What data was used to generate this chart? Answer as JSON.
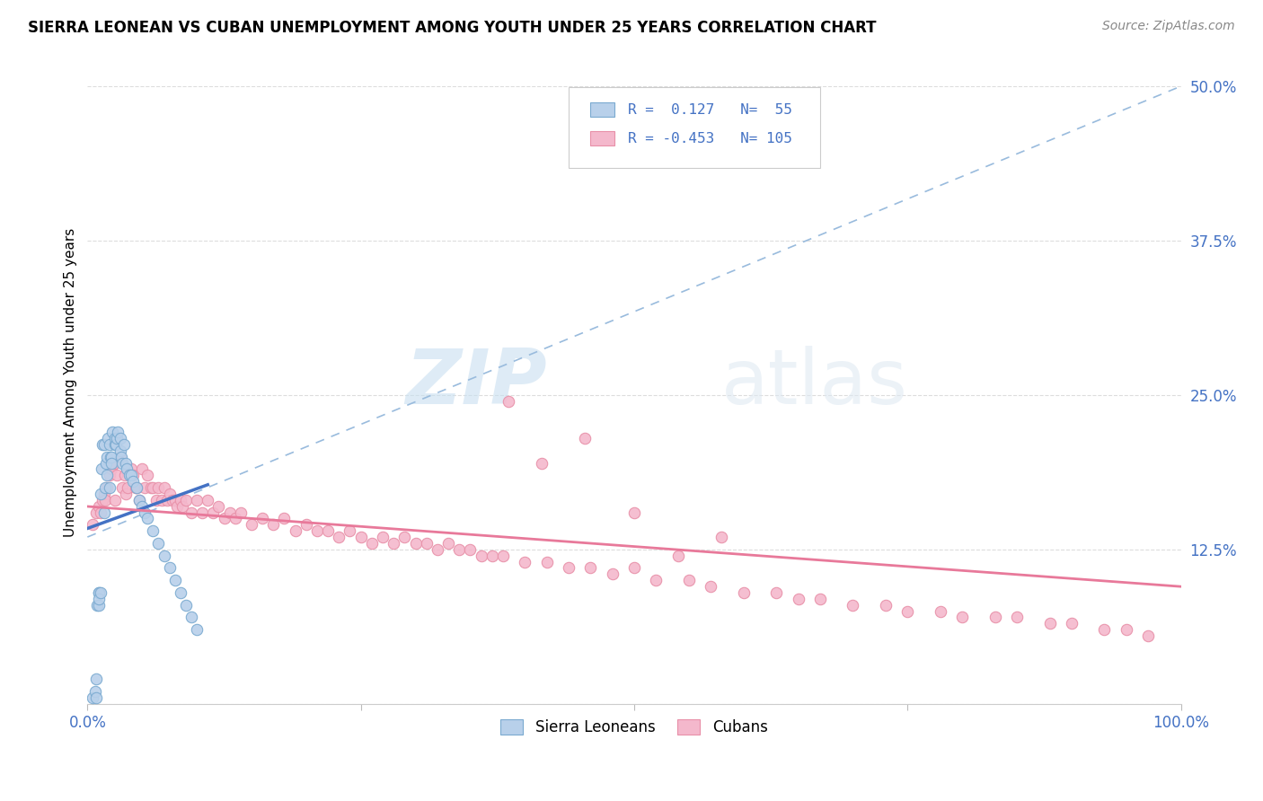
{
  "title": "SIERRA LEONEAN VS CUBAN UNEMPLOYMENT AMONG YOUTH UNDER 25 YEARS CORRELATION CHART",
  "source": "Source: ZipAtlas.com",
  "ylabel": "Unemployment Among Youth under 25 years",
  "yticks": [
    0.0,
    0.125,
    0.25,
    0.375,
    0.5
  ],
  "ytick_labels": [
    "",
    "12.5%",
    "25.0%",
    "37.5%",
    "50.0%"
  ],
  "xlim": [
    0.0,
    1.0
  ],
  "ylim": [
    0.0,
    0.52
  ],
  "legend_blue_label": "Sierra Leoneans",
  "legend_pink_label": "Cubans",
  "R_blue": 0.127,
  "N_blue": 55,
  "R_pink": -0.453,
  "N_pink": 105,
  "blue_line_color": "#4472c4",
  "pink_line_color": "#e8799a",
  "blue_scatter_fill": "#b8d0ea",
  "blue_scatter_edge": "#7aaad0",
  "pink_scatter_fill": "#f4b8cc",
  "pink_scatter_edge": "#e890a8",
  "watermark_zip": "ZIP",
  "watermark_atlas": "atlas",
  "blue_x": [
    0.005,
    0.007,
    0.008,
    0.008,
    0.009,
    0.01,
    0.01,
    0.01,
    0.01,
    0.012,
    0.012,
    0.013,
    0.014,
    0.015,
    0.015,
    0.016,
    0.017,
    0.018,
    0.018,
    0.019,
    0.02,
    0.02,
    0.021,
    0.022,
    0.022,
    0.023,
    0.025,
    0.025,
    0.026,
    0.027,
    0.028,
    0.03,
    0.03,
    0.031,
    0.032,
    0.033,
    0.035,
    0.036,
    0.038,
    0.04,
    0.042,
    0.045,
    0.047,
    0.05,
    0.052,
    0.055,
    0.06,
    0.065,
    0.07,
    0.075,
    0.08,
    0.085,
    0.09,
    0.095,
    0.1
  ],
  "blue_y": [
    0.005,
    0.01,
    0.02,
    0.005,
    0.08,
    0.08,
    0.09,
    0.09,
    0.085,
    0.09,
    0.17,
    0.19,
    0.21,
    0.155,
    0.21,
    0.175,
    0.195,
    0.2,
    0.185,
    0.215,
    0.175,
    0.21,
    0.2,
    0.2,
    0.195,
    0.22,
    0.21,
    0.215,
    0.21,
    0.215,
    0.22,
    0.205,
    0.215,
    0.2,
    0.195,
    0.21,
    0.195,
    0.19,
    0.185,
    0.185,
    0.18,
    0.175,
    0.165,
    0.16,
    0.155,
    0.15,
    0.14,
    0.13,
    0.12,
    0.11,
    0.1,
    0.09,
    0.08,
    0.07,
    0.06
  ],
  "pink_x": [
    0.005,
    0.008,
    0.01,
    0.012,
    0.014,
    0.015,
    0.016,
    0.018,
    0.02,
    0.022,
    0.024,
    0.025,
    0.027,
    0.03,
    0.032,
    0.034,
    0.035,
    0.037,
    0.04,
    0.042,
    0.044,
    0.045,
    0.047,
    0.05,
    0.052,
    0.055,
    0.058,
    0.06,
    0.063,
    0.065,
    0.068,
    0.07,
    0.073,
    0.075,
    0.078,
    0.08,
    0.082,
    0.085,
    0.087,
    0.09,
    0.095,
    0.1,
    0.105,
    0.11,
    0.115,
    0.12,
    0.125,
    0.13,
    0.135,
    0.14,
    0.15,
    0.16,
    0.17,
    0.18,
    0.19,
    0.2,
    0.21,
    0.22,
    0.23,
    0.24,
    0.25,
    0.26,
    0.27,
    0.28,
    0.29,
    0.3,
    0.31,
    0.32,
    0.33,
    0.34,
    0.35,
    0.36,
    0.37,
    0.38,
    0.4,
    0.42,
    0.44,
    0.46,
    0.48,
    0.5,
    0.52,
    0.55,
    0.57,
    0.6,
    0.63,
    0.65,
    0.67,
    0.7,
    0.73,
    0.75,
    0.78,
    0.8,
    0.83,
    0.85,
    0.88,
    0.9,
    0.93,
    0.95,
    0.97,
    0.385,
    0.415,
    0.455,
    0.5,
    0.54,
    0.58
  ],
  "pink_y": [
    0.145,
    0.155,
    0.16,
    0.155,
    0.165,
    0.17,
    0.165,
    0.175,
    0.185,
    0.19,
    0.195,
    0.165,
    0.185,
    0.2,
    0.175,
    0.185,
    0.17,
    0.175,
    0.19,
    0.185,
    0.175,
    0.175,
    0.165,
    0.19,
    0.175,
    0.185,
    0.175,
    0.175,
    0.165,
    0.175,
    0.165,
    0.175,
    0.165,
    0.17,
    0.165,
    0.165,
    0.16,
    0.165,
    0.16,
    0.165,
    0.155,
    0.165,
    0.155,
    0.165,
    0.155,
    0.16,
    0.15,
    0.155,
    0.15,
    0.155,
    0.145,
    0.15,
    0.145,
    0.15,
    0.14,
    0.145,
    0.14,
    0.14,
    0.135,
    0.14,
    0.135,
    0.13,
    0.135,
    0.13,
    0.135,
    0.13,
    0.13,
    0.125,
    0.13,
    0.125,
    0.125,
    0.12,
    0.12,
    0.12,
    0.115,
    0.115,
    0.11,
    0.11,
    0.105,
    0.11,
    0.1,
    0.1,
    0.095,
    0.09,
    0.09,
    0.085,
    0.085,
    0.08,
    0.08,
    0.075,
    0.075,
    0.07,
    0.07,
    0.07,
    0.065,
    0.065,
    0.06,
    0.06,
    0.055,
    0.245,
    0.195,
    0.215,
    0.155,
    0.12,
    0.135
  ]
}
